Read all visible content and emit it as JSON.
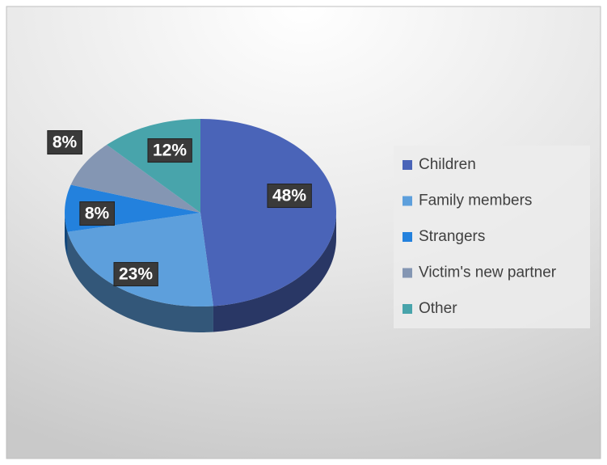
{
  "chart_data": {
    "type": "pie",
    "categories": [
      "Children",
      "Family members",
      "Strangers",
      "Victim's new partner",
      "Other"
    ],
    "values": [
      48,
      23,
      8,
      8,
      12
    ],
    "value_labels": [
      "48%",
      "23%",
      "8%",
      "8%",
      "12%"
    ],
    "colors": [
      "#4a64b8",
      "#5d9fdc",
      "#2381dd",
      "#8496b3",
      "#48a4ab"
    ],
    "legend": "right"
  }
}
